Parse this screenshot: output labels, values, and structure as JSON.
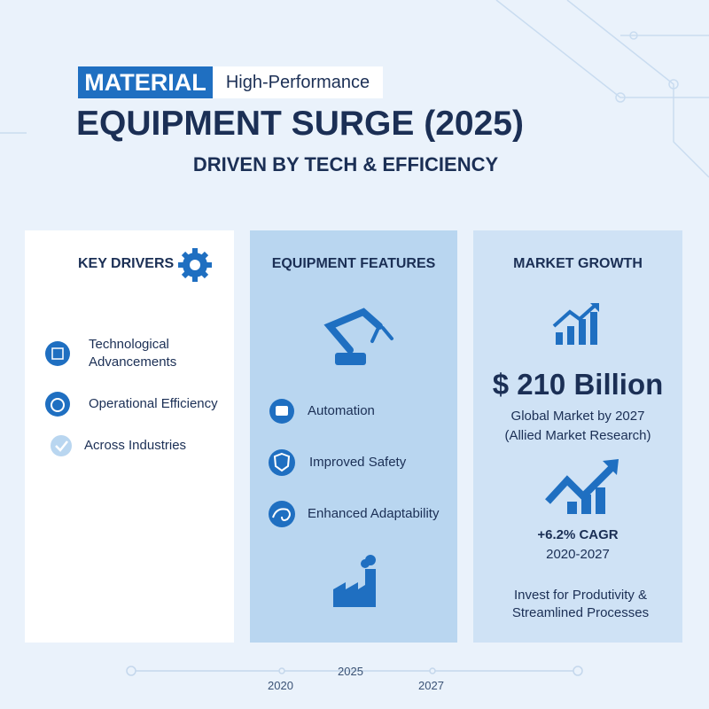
{
  "header": {
    "tag": "MATERIAL",
    "tag_suffix": "High-Performance",
    "title": "EQUIPMENT SURGE (2025)",
    "subtitle": "DRIVEN BY TECH & EFFICIENCY"
  },
  "panels": {
    "key_drivers": {
      "title": "KEY DRIVERS",
      "items": [
        "Technological Advancements",
        "Operational Efficiency",
        "Across Industries"
      ]
    },
    "equipment_features": {
      "title": "EQUIPMENT FEATURES",
      "items": [
        "Automation",
        "Improved Safety",
        "Enhanced Adaptability"
      ]
    },
    "market_growth": {
      "title": "MARKET GROWTH",
      "value": "$ 210 Billion",
      "caption": "Global Market by 2027",
      "source": "(Allied Market Research)",
      "cagr": "+6.2% CAGR",
      "period": "2020-2027",
      "note": "Invest for Produtivity & Streamlined Processes"
    }
  },
  "timeline": {
    "labels": [
      "2020",
      "2025",
      "2027"
    ]
  }
}
